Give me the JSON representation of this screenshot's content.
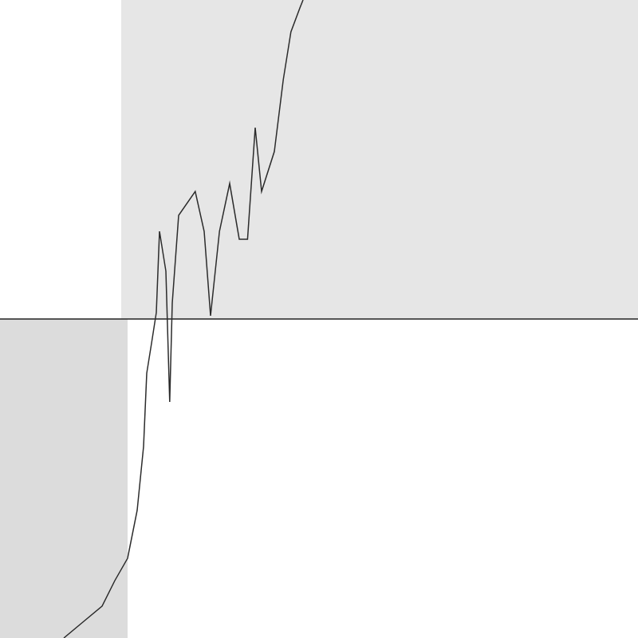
{
  "chart_data": {
    "type": "line",
    "xlim": [
      0,
      100
    ],
    "ylim": [
      -100,
      100
    ],
    "grid": false,
    "tick_labels": false,
    "series": [
      {
        "type": "line",
        "color": "#2b2b2b",
        "x": [
          10,
          13,
          16,
          18,
          20,
          21.5,
          22.5,
          23,
          23.8,
          24.5,
          25,
          26,
          26.6,
          27,
          28,
          30.6,
          32,
          33,
          34.4,
          36,
          37.5,
          38.8,
          40,
          41,
          43,
          44.4,
          45.6,
          47,
          47.5
        ],
        "values": [
          -100,
          -95,
          -90,
          -82,
          -75,
          -60,
          -40,
          -17,
          -7,
          2,
          27.5,
          15,
          -26,
          5,
          32.5,
          40,
          27.5,
          1,
          27.5,
          42.5,
          25,
          25,
          60,
          40,
          52.5,
          75,
          90,
          97.5,
          100
        ]
      },
      {
        "type": "line",
        "color": "#222222",
        "x": [
          0,
          100
        ],
        "values": [
          0,
          0
        ]
      },
      {
        "type": "area",
        "color": "#e6e6e6",
        "x": [
          19,
          100
        ],
        "values": [
          100,
          100
        ]
      },
      {
        "type": "area",
        "color": "#dcdcdc",
        "x": [
          0,
          20
        ],
        "values": [
          -100,
          -100
        ]
      }
    ]
  }
}
